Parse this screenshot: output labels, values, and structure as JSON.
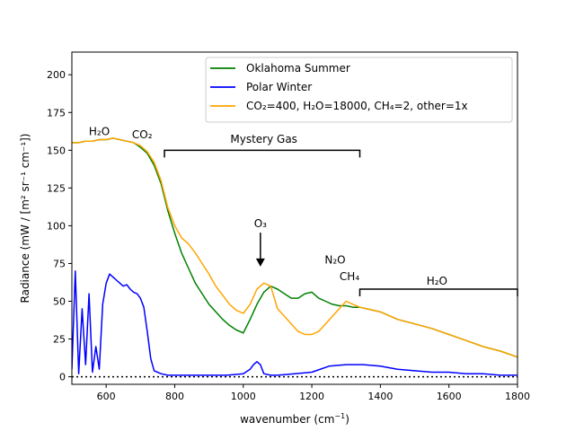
{
  "chart_data": {
    "type": "line",
    "xlabel_main": "wavenumber (cm",
    "xlabel_sup": "−1",
    "xlabel_end": ")",
    "ylabel": "Radiance (mW / [m² sr⁻¹ cm⁻¹])",
    "xlim": [
      500,
      1800
    ],
    "ylim": [
      -5,
      215
    ],
    "xticks": [
      600,
      800,
      1000,
      1200,
      1400,
      1600,
      1800
    ],
    "yticks": [
      0,
      25,
      50,
      75,
      100,
      125,
      150,
      175,
      200
    ],
    "zero_line": 0,
    "legend_position": "top-right",
    "series": [
      {
        "name": "Oklahoma Summer",
        "color": "#008000",
        "x": [
          500,
          520,
          540,
          560,
          580,
          600,
          620,
          640,
          660,
          680,
          700,
          720,
          740,
          760,
          780,
          800,
          820,
          840,
          860,
          880,
          900,
          920,
          940,
          960,
          980,
          1000,
          1020,
          1040,
          1060,
          1080,
          1100,
          1120,
          1140,
          1160,
          1180,
          1200,
          1220,
          1240,
          1260,
          1280,
          1300,
          1320,
          1340,
          1360,
          1380,
          1400,
          1450,
          1500,
          1550,
          1600,
          1650,
          1700,
          1750,
          1800
        ],
        "y": [
          155,
          155,
          156,
          156,
          157,
          157,
          158,
          157,
          156,
          155,
          152,
          148,
          140,
          128,
          110,
          95,
          82,
          72,
          62,
          55,
          48,
          43,
          38,
          34,
          31,
          29,
          38,
          48,
          56,
          60,
          58,
          55,
          52,
          52,
          55,
          56,
          52,
          50,
          48,
          47,
          47,
          46,
          46,
          45,
          44,
          43,
          38,
          35,
          32,
          28,
          24,
          20,
          17,
          13
        ]
      },
      {
        "name": "Polar Winter",
        "color": "#0000ff",
        "x": [
          500,
          510,
          520,
          530,
          540,
          550,
          560,
          570,
          580,
          590,
          600,
          610,
          620,
          630,
          640,
          650,
          660,
          670,
          680,
          690,
          700,
          710,
          720,
          730,
          740,
          760,
          780,
          800,
          850,
          900,
          950,
          1000,
          1020,
          1030,
          1040,
          1050,
          1060,
          1080,
          1100,
          1150,
          1200,
          1250,
          1300,
          1350,
          1400,
          1450,
          1500,
          1550,
          1600,
          1650,
          1700,
          1750,
          1800
        ],
        "y": [
          5,
          70,
          2,
          45,
          8,
          55,
          3,
          20,
          5,
          48,
          62,
          68,
          66,
          64,
          62,
          60,
          61,
          58,
          56,
          55,
          52,
          46,
          30,
          12,
          4,
          2,
          1,
          1,
          1,
          1,
          1,
          2,
          5,
          8,
          10,
          8,
          2,
          1,
          1,
          2,
          3,
          7,
          8,
          8,
          7,
          5,
          4,
          3,
          3,
          2,
          2,
          1,
          1
        ]
      },
      {
        "name": "CO₂=400, H₂O=18000, CH₄=2, other=1x",
        "color": "#ffa500",
        "x": [
          500,
          520,
          540,
          560,
          580,
          600,
          620,
          640,
          660,
          680,
          700,
          720,
          740,
          760,
          780,
          800,
          820,
          840,
          860,
          880,
          900,
          920,
          940,
          960,
          980,
          1000,
          1020,
          1040,
          1060,
          1080,
          1100,
          1120,
          1140,
          1160,
          1180,
          1200,
          1220,
          1240,
          1260,
          1280,
          1300,
          1320,
          1340,
          1360,
          1380,
          1400,
          1450,
          1500,
          1550,
          1600,
          1650,
          1700,
          1750,
          1800
        ],
        "y": [
          155,
          155,
          156,
          156,
          157,
          157,
          158,
          157,
          156,
          155,
          153,
          149,
          142,
          130,
          112,
          100,
          92,
          88,
          82,
          75,
          68,
          60,
          54,
          48,
          44,
          42,
          48,
          58,
          62,
          60,
          45,
          40,
          35,
          30,
          28,
          28,
          30,
          35,
          40,
          45,
          50,
          48,
          46,
          45,
          44,
          43,
          38,
          35,
          32,
          28,
          24,
          20,
          17,
          13
        ]
      }
    ],
    "annotations": [
      {
        "id": "h2o-left",
        "text": "H₂O",
        "x": 580,
        "y": 160
      },
      {
        "id": "co2",
        "text": "CO₂",
        "x": 705,
        "y": 158
      },
      {
        "id": "mystery-gas",
        "text": "Mystery Gas",
        "x": 1060,
        "y": 155,
        "bracket_from": 770,
        "bracket_to": 1340,
        "bracket_y": 150
      },
      {
        "id": "o3",
        "text": "O₃",
        "x": 1050,
        "y": 99,
        "arrow_to_y": 73
      },
      {
        "id": "n2o",
        "text": "N₂O",
        "x": 1268,
        "y": 75
      },
      {
        "id": "ch4",
        "text": "CH₄",
        "x": 1310,
        "y": 64
      },
      {
        "id": "h2o-right",
        "text": "H₂O",
        "x": 1565,
        "y": 61,
        "bracket_from": 1340,
        "bracket_to": 1800,
        "bracket_y": 58
      }
    ]
  }
}
